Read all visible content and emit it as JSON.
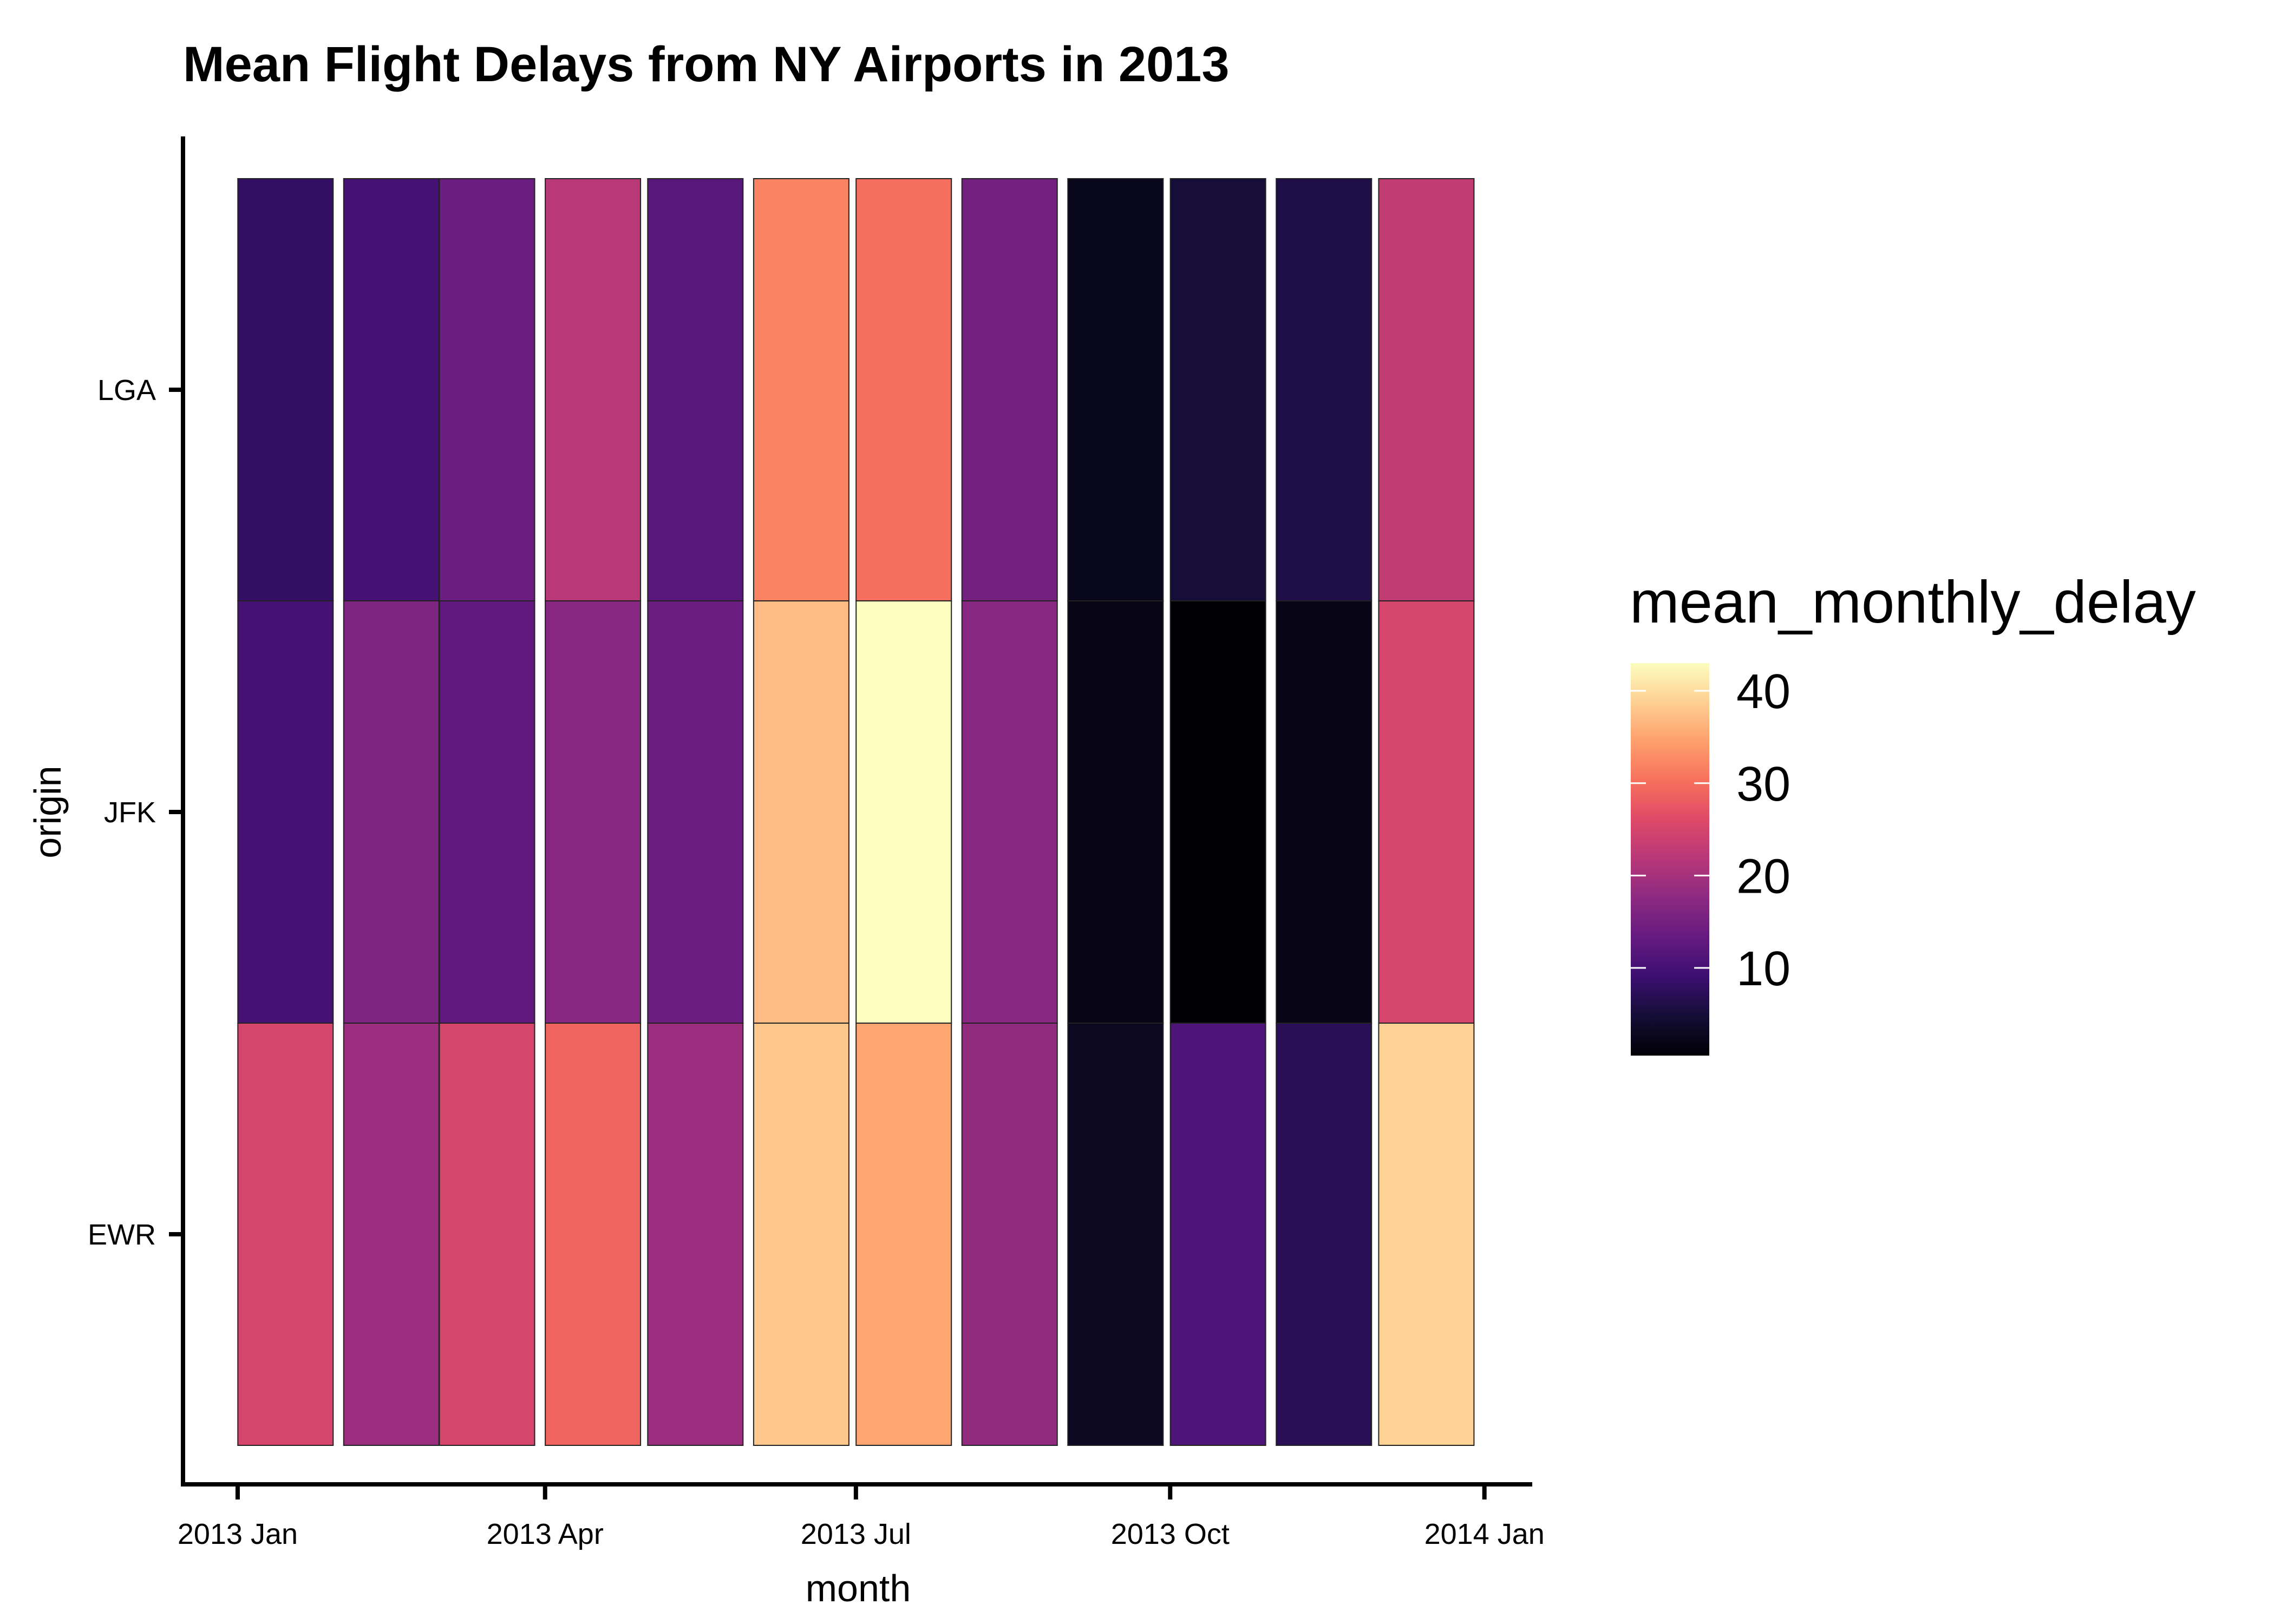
{
  "chart_data": {
    "type": "heatmap",
    "title": "Mean Flight Delays from NY Airports in 2013",
    "xlabel": "month",
    "ylabel": "origin",
    "x_ticks": [
      "2013 Jan",
      "2013 Apr",
      "2013 Jul",
      "2013 Oct",
      "2014 Jan"
    ],
    "x_range": [
      "2012-12-16",
      "2014-01-15"
    ],
    "y_categories": [
      "EWR",
      "JFK",
      "LGA"
    ],
    "months": [
      "2013-01",
      "2013-02",
      "2013-03",
      "2013-04",
      "2013-05",
      "2013-06",
      "2013-07",
      "2013-08",
      "2013-09",
      "2013-10",
      "2013-11",
      "2013-12"
    ],
    "series": [
      {
        "name": "EWR",
        "values": [
          25,
          19,
          25,
          29,
          19,
          38,
          35,
          18,
          3,
          11,
          7,
          39
        ]
      },
      {
        "name": "JFK",
        "values": [
          10,
          16,
          13,
          17,
          14,
          37,
          43,
          17,
          2,
          0.5,
          2,
          25
        ]
      },
      {
        "name": "LGA",
        "values": [
          8,
          10,
          14,
          22,
          12,
          32,
          30,
          15,
          2.5,
          5,
          6,
          23
        ]
      }
    ],
    "legend": {
      "title": "mean_monthly_delay",
      "ticks": [
        10,
        20,
        30,
        40
      ],
      "range": [
        0.5,
        43
      ],
      "palette": "magma",
      "placement": "right"
    },
    "grid": false
  }
}
